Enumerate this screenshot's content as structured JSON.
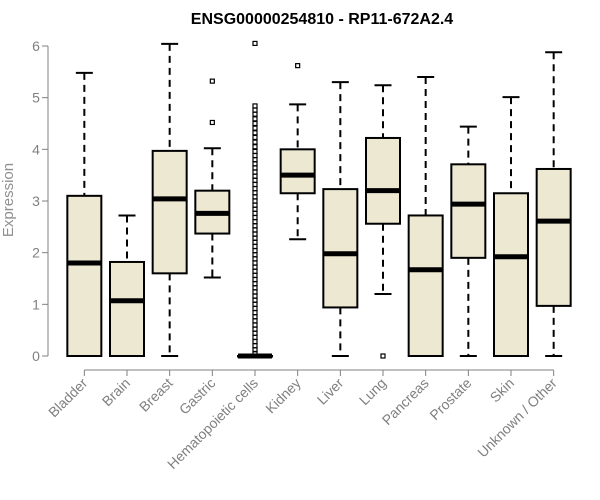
{
  "chart_data": {
    "type": "boxplot",
    "title": "ENSG00000254810 - RP11-672A2.4",
    "ylabel": "Expression",
    "xlabel": "",
    "ylim": [
      0,
      6.1
    ],
    "yticks": [
      0,
      1,
      2,
      3,
      4,
      5,
      6
    ],
    "colors": {
      "box_fill": "#EDE8D2",
      "box_stroke": "#000000",
      "axis": "#808080",
      "tick_text": "#808080"
    },
    "categories": [
      "Bladder",
      "Brain",
      "Breast",
      "Gastric",
      "Hematopoietic cells",
      "Kidney",
      "Liver",
      "Lung",
      "Pancreas",
      "Prostate",
      "Skin",
      "Unknown / Other"
    ],
    "boxes": [
      {
        "category": "Bladder",
        "whisker_low": 0,
        "q1": 0,
        "median": 1.8,
        "q3": 3.1,
        "whisker_high": 5.48,
        "outliers": []
      },
      {
        "category": "Brain",
        "whisker_low": 0,
        "q1": 0,
        "median": 1.07,
        "q3": 1.82,
        "whisker_high": 2.72,
        "outliers": []
      },
      {
        "category": "Breast",
        "whisker_low": 0,
        "q1": 1.6,
        "median": 3.04,
        "q3": 3.97,
        "whisker_high": 6.04,
        "outliers": []
      },
      {
        "category": "Gastric",
        "whisker_low": 1.52,
        "q1": 2.37,
        "median": 2.76,
        "q3": 3.2,
        "whisker_high": 4.02,
        "outliers": [
          4.52,
          5.32
        ]
      },
      {
        "category": "Hematopoietic cells",
        "whisker_low": 0,
        "q1": 0,
        "median": 0,
        "q3": 0,
        "whisker_high": 0,
        "outliers": [
          0.05,
          0.12,
          0.2,
          0.28,
          0.36,
          0.44,
          0.52,
          0.6,
          0.68,
          0.76,
          0.84,
          0.92,
          1.0,
          1.08,
          1.16,
          1.24,
          1.32,
          1.4,
          1.48,
          1.56,
          1.64,
          1.72,
          1.8,
          1.88,
          1.96,
          2.04,
          2.12,
          2.2,
          2.28,
          2.36,
          2.44,
          2.52,
          2.6,
          2.68,
          2.76,
          2.84,
          2.92,
          3.0,
          3.08,
          3.16,
          3.24,
          3.32,
          3.4,
          3.48,
          3.56,
          3.64,
          3.72,
          3.8,
          3.88,
          3.96,
          4.05,
          4.14,
          4.23,
          4.32,
          4.41,
          4.5,
          4.59,
          4.68,
          4.76,
          4.84,
          6.05
        ]
      },
      {
        "category": "Kidney",
        "whisker_low": 2.26,
        "q1": 3.15,
        "median": 3.5,
        "q3": 4.0,
        "whisker_high": 4.87,
        "outliers": [
          5.62
        ]
      },
      {
        "category": "Liver",
        "whisker_low": 0,
        "q1": 0.94,
        "median": 1.98,
        "q3": 3.23,
        "whisker_high": 5.3,
        "outliers": []
      },
      {
        "category": "Lung",
        "whisker_low": 1.2,
        "q1": 2.56,
        "median": 3.2,
        "q3": 4.22,
        "whisker_high": 5.24,
        "outliers": [
          0
        ]
      },
      {
        "category": "Pancreas",
        "whisker_low": 0,
        "q1": 0,
        "median": 1.67,
        "q3": 2.72,
        "whisker_high": 5.4,
        "outliers": []
      },
      {
        "category": "Prostate",
        "whisker_low": 0,
        "q1": 1.9,
        "median": 2.94,
        "q3": 3.71,
        "whisker_high": 4.44,
        "outliers": []
      },
      {
        "category": "Skin",
        "whisker_low": 0,
        "q1": 0,
        "median": 1.92,
        "q3": 3.15,
        "whisker_high": 5.01,
        "outliers": []
      },
      {
        "category": "Unknown / Other",
        "whisker_low": 0,
        "q1": 0.97,
        "median": 2.61,
        "q3": 3.62,
        "whisker_high": 5.88,
        "outliers": []
      }
    ]
  }
}
